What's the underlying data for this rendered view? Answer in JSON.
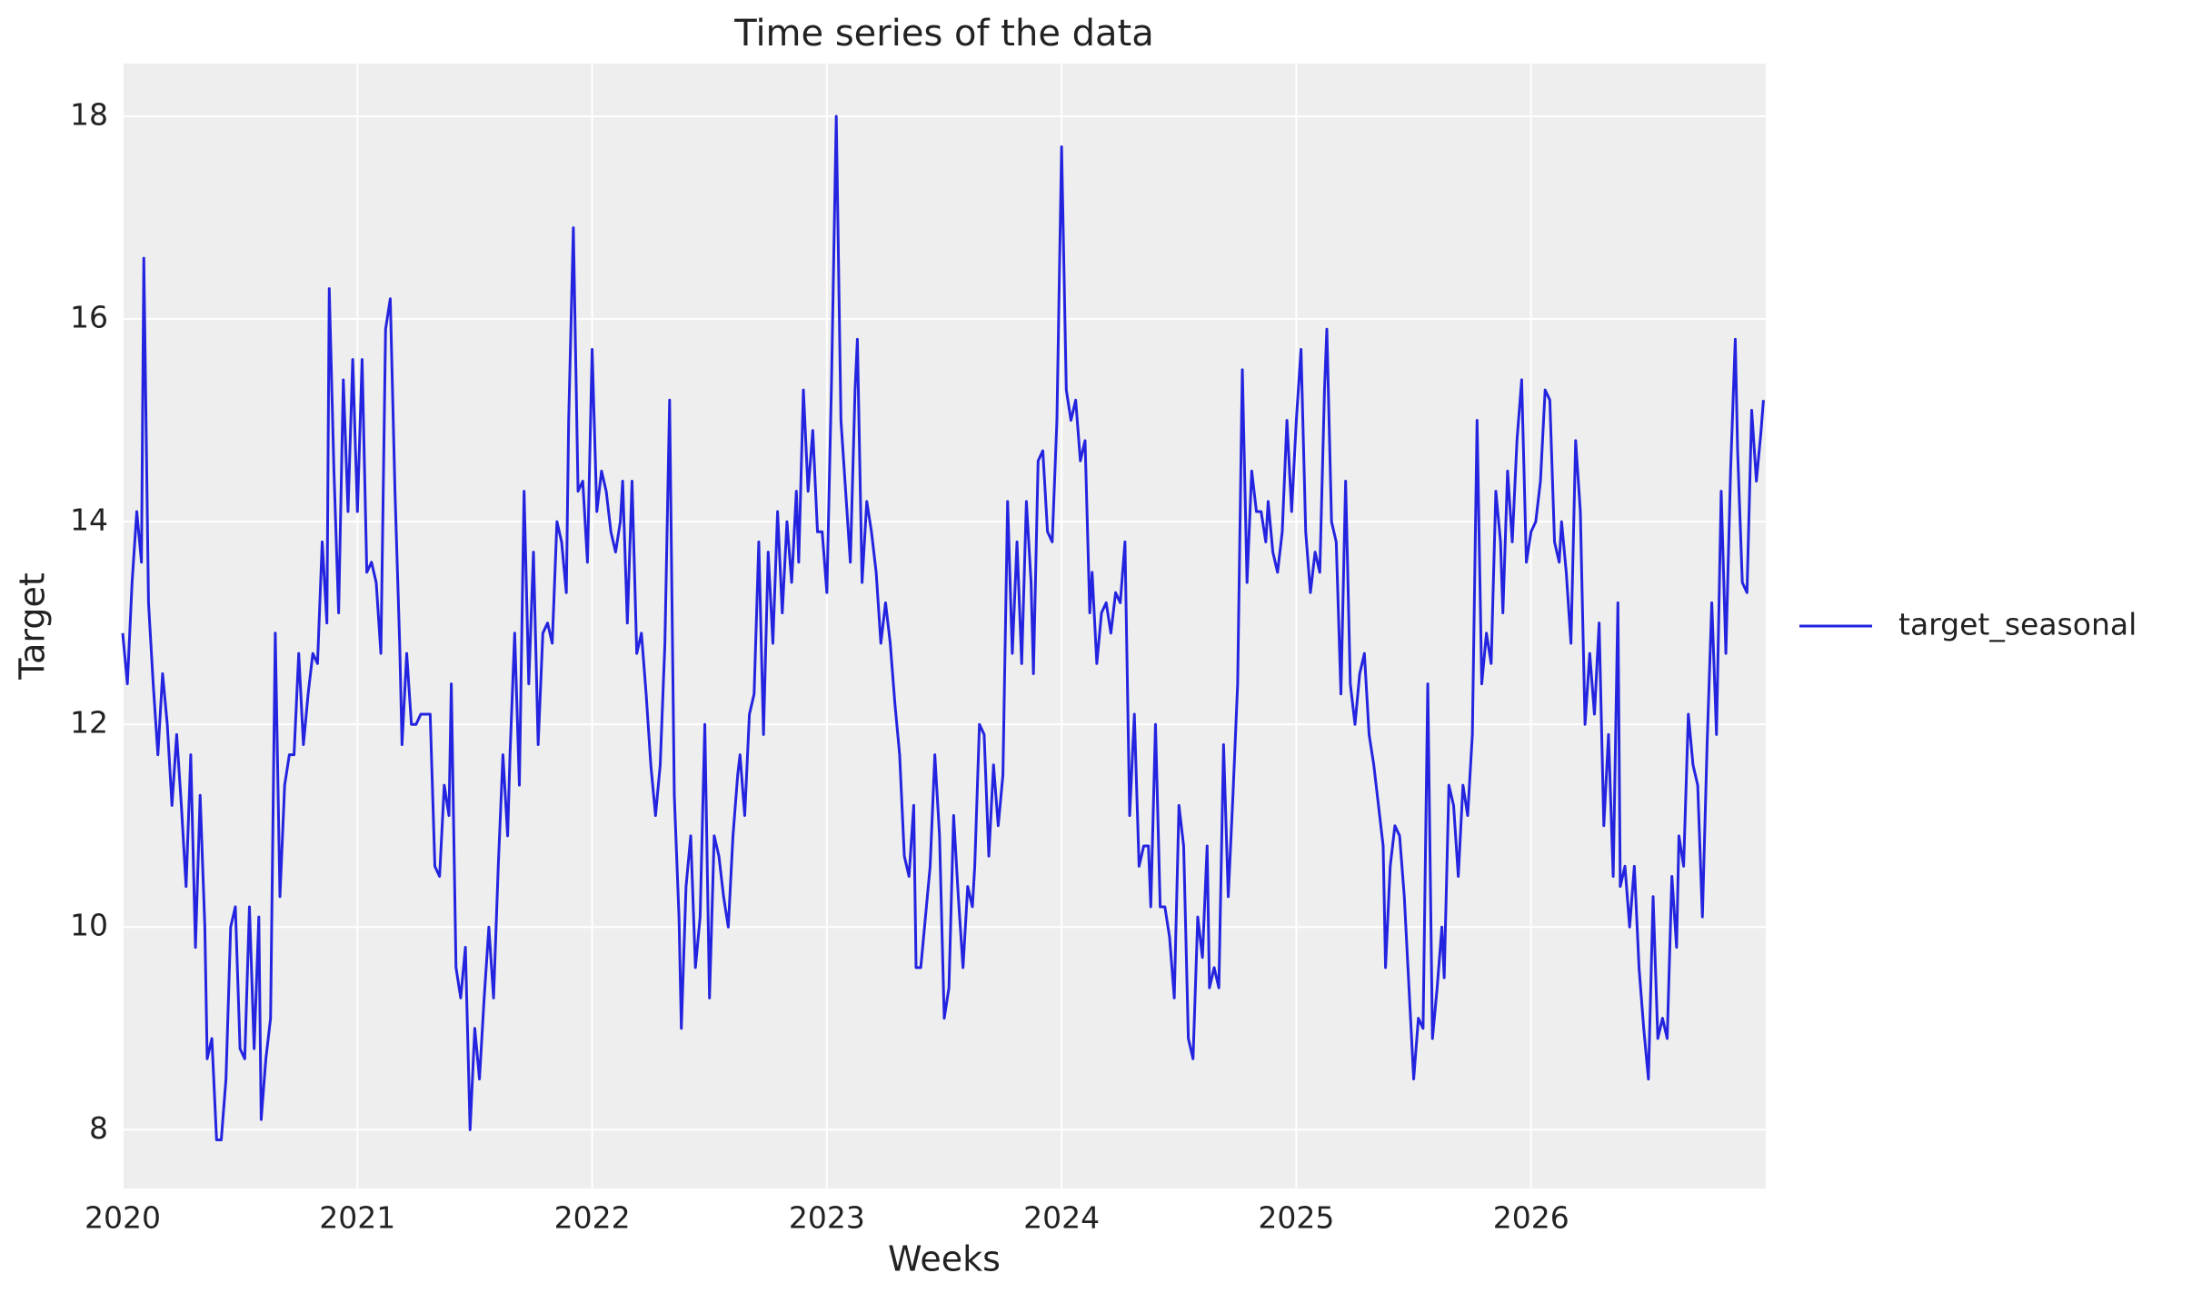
{
  "chart_data": {
    "type": "line",
    "title": "Time series of the data",
    "xlabel": "Weeks",
    "ylabel": "Target",
    "x": [
      2020.0,
      2020.02,
      2020.04,
      2020.06,
      2020.08,
      2020.09,
      2020.11,
      2020.13,
      2020.15,
      2020.17,
      2020.19,
      2020.21,
      2020.23,
      2020.25,
      2020.27,
      2020.29,
      2020.31,
      2020.33,
      2020.35,
      2020.36,
      2020.38,
      2020.4,
      2020.42,
      2020.44,
      2020.46,
      2020.48,
      2020.5,
      2020.52,
      2020.54,
      2020.56,
      2020.58,
      2020.59,
      2020.61,
      2020.63,
      2020.65,
      2020.67,
      2020.69,
      2020.71,
      2020.73,
      2020.75,
      2020.77,
      2020.79,
      2020.81,
      2020.83,
      2020.85,
      2020.87,
      2020.88,
      2020.9,
      2020.92,
      2020.94,
      2020.96,
      2020.98,
      2021.0,
      2021.02,
      2021.04,
      2021.06,
      2021.08,
      2021.1,
      2021.12,
      2021.14,
      2021.16,
      2021.18,
      2021.19,
      2021.21,
      2021.23,
      2021.25,
      2021.27,
      2021.29,
      2021.31,
      2021.33,
      2021.35,
      2021.37,
      2021.39,
      2021.4,
      2021.42,
      2021.44,
      2021.46,
      2021.48,
      2021.5,
      2021.52,
      2021.54,
      2021.56,
      2021.58,
      2021.6,
      2021.62,
      2021.64,
      2021.65,
      2021.67,
      2021.69,
      2021.71,
      2021.73,
      2021.75,
      2021.77,
      2021.79,
      2021.81,
      2021.83,
      2021.85,
      2021.87,
      2021.89,
      2021.9,
      2021.92,
      2021.94,
      2021.96,
      2021.98,
      2022.0,
      2022.02,
      2022.04,
      2022.06,
      2022.08,
      2022.1,
      2022.12,
      2022.13,
      2022.15,
      2022.17,
      2022.19,
      2022.21,
      2022.23,
      2022.25,
      2022.27,
      2022.29,
      2022.31,
      2022.33,
      2022.35,
      2022.37,
      2022.38,
      2022.4,
      2022.42,
      2022.44,
      2022.46,
      2022.48,
      2022.5,
      2022.52,
      2022.54,
      2022.56,
      2022.58,
      2022.6,
      2022.62,
      2022.63,
      2022.65,
      2022.67,
      2022.69,
      2022.71,
      2022.73,
      2022.75,
      2022.77,
      2022.79,
      2022.81,
      2022.83,
      2022.85,
      2022.87,
      2022.88,
      2022.9,
      2022.92,
      2022.94,
      2022.96,
      2022.98,
      2023.0,
      2023.02,
      2023.04,
      2023.06,
      2023.08,
      2023.1,
      2023.12,
      2023.13,
      2023.15,
      2023.17,
      2023.19,
      2023.21,
      2023.23,
      2023.25,
      2023.27,
      2023.29,
      2023.31,
      2023.33,
      2023.35,
      2023.37,
      2023.38,
      2023.4,
      2023.42,
      2023.44,
      2023.46,
      2023.48,
      2023.5,
      2023.52,
      2023.54,
      2023.56,
      2023.58,
      2023.6,
      2023.62,
      2023.63,
      2023.65,
      2023.67,
      2023.69,
      2023.71,
      2023.73,
      2023.75,
      2023.77,
      2023.79,
      2023.81,
      2023.83,
      2023.85,
      2023.87,
      2023.88,
      2023.9,
      2023.92,
      2023.94,
      2023.96,
      2023.98,
      2024.0,
      2024.02,
      2024.04,
      2024.06,
      2024.08,
      2024.1,
      2024.12,
      2024.13,
      2024.15,
      2024.17,
      2024.19,
      2024.21,
      2024.23,
      2024.25,
      2024.27,
      2024.29,
      2024.31,
      2024.33,
      2024.35,
      2024.37,
      2024.38,
      2024.4,
      2024.42,
      2024.44,
      2024.46,
      2024.48,
      2024.5,
      2024.52,
      2024.54,
      2024.56,
      2024.58,
      2024.6,
      2024.62,
      2024.63,
      2024.65,
      2024.67,
      2024.69,
      2024.71,
      2024.73,
      2024.75,
      2024.77,
      2024.79,
      2024.81,
      2024.83,
      2024.85,
      2024.87,
      2024.88,
      2024.9,
      2024.92,
      2024.94,
      2024.96,
      2024.98,
      2025.0,
      2025.02,
      2025.04,
      2025.06,
      2025.08,
      2025.1,
      2025.12,
      2025.13,
      2025.15,
      2025.17,
      2025.19,
      2025.21,
      2025.23,
      2025.25,
      2025.27,
      2025.29,
      2025.31,
      2025.33,
      2025.35,
      2025.37,
      2025.38,
      2025.4,
      2025.42,
      2025.44,
      2025.46,
      2025.48,
      2025.5,
      2025.52,
      2025.54,
      2025.56,
      2025.58,
      2025.6,
      2025.62,
      2025.63,
      2025.65,
      2025.67,
      2025.69,
      2025.71,
      2025.73,
      2025.75,
      2025.77,
      2025.79,
      2025.81,
      2025.83,
      2025.85,
      2025.87,
      2025.88,
      2025.9,
      2025.92,
      2025.94,
      2025.96,
      2025.98,
      2026.0,
      2026.02,
      2026.04,
      2026.06,
      2026.08,
      2026.1,
      2026.12,
      2026.13,
      2026.15,
      2026.17,
      2026.19,
      2026.21,
      2026.23,
      2026.25,
      2026.27,
      2026.29,
      2026.31,
      2026.33,
      2026.35,
      2026.37,
      2026.38,
      2026.4,
      2026.42,
      2026.44,
      2026.46,
      2026.48,
      2026.5,
      2026.52,
      2026.54,
      2026.56,
      2026.58,
      2026.6,
      2026.62,
      2026.63,
      2026.65,
      2026.67,
      2026.69,
      2026.71,
      2026.73,
      2026.75,
      2026.77,
      2026.79,
      2026.81,
      2026.83,
      2026.85,
      2026.87,
      2026.88,
      2026.9,
      2026.92,
      2026.94,
      2026.96,
      2026.98,
      2026.99
    ],
    "series": [
      {
        "name": "target_seasonal",
        "color": "#2424e0",
        "values": [
          12.9,
          12.4,
          13.4,
          14.1,
          13.6,
          16.6,
          13.2,
          12.4,
          11.7,
          12.5,
          12.0,
          11.2,
          11.9,
          11.2,
          10.4,
          11.7,
          9.8,
          11.3,
          10.0,
          8.7,
          8.9,
          7.9,
          7.9,
          8.5,
          10.0,
          10.2,
          8.8,
          8.7,
          10.2,
          8.8,
          10.1,
          8.1,
          8.7,
          9.1,
          12.9,
          10.3,
          11.4,
          11.7,
          11.7,
          12.7,
          11.8,
          12.3,
          12.7,
          12.6,
          13.8,
          13.0,
          16.3,
          14.5,
          13.1,
          15.4,
          14.1,
          15.6,
          14.1,
          15.6,
          13.5,
          13.6,
          13.4,
          12.7,
          15.9,
          16.2,
          14.3,
          12.8,
          11.8,
          12.7,
          12.0,
          12.0,
          12.1,
          12.1,
          12.1,
          10.6,
          10.5,
          11.4,
          11.1,
          12.4,
          9.6,
          9.3,
          9.8,
          8.0,
          9.0,
          8.5,
          9.3,
          10.0,
          9.3,
          10.6,
          11.7,
          10.9,
          11.7,
          12.9,
          11.4,
          14.3,
          12.4,
          13.7,
          11.8,
          12.9,
          13.0,
          12.8,
          14.0,
          13.8,
          13.3,
          15.0,
          16.9,
          14.3,
          14.4,
          13.6,
          15.7,
          14.1,
          14.5,
          14.3,
          13.9,
          13.7,
          14.0,
          14.4,
          13.0,
          14.4,
          12.7,
          12.9,
          12.3,
          11.6,
          11.1,
          11.6,
          12.8,
          15.2,
          11.3,
          10.1,
          9.0,
          10.4,
          10.9,
          9.6,
          10.1,
          12.0,
          9.3,
          10.9,
          10.7,
          10.3,
          10.0,
          10.9,
          11.5,
          11.7,
          11.1,
          12.1,
          12.3,
          13.8,
          11.9,
          13.7,
          12.8,
          14.1,
          13.1,
          14.0,
          13.4,
          14.3,
          13.6,
          15.3,
          14.3,
          14.9,
          13.9,
          13.9,
          13.3,
          15.4,
          18.0,
          15.0,
          14.3,
          13.6,
          15.3,
          15.8,
          13.4,
          14.2,
          13.9,
          13.5,
          12.8,
          13.2,
          12.8,
          12.2,
          11.7,
          10.7,
          10.5,
          11.2,
          9.6,
          9.6,
          10.1,
          10.6,
          11.7,
          10.9,
          9.1,
          9.4,
          11.1,
          10.3,
          9.6,
          10.4,
          10.2,
          10.6,
          12.0,
          11.9,
          10.7,
          11.6,
          11.0,
          11.5,
          14.2,
          12.7,
          13.8,
          12.6,
          14.2,
          13.4,
          12.5,
          14.6,
          14.7,
          13.9,
          13.8,
          15.0,
          17.7,
          15.3,
          15.0,
          15.2,
          14.6,
          14.8,
          13.1,
          13.5,
          12.6,
          13.1,
          13.2,
          12.9,
          13.3,
          13.2,
          13.8,
          11.1,
          12.1,
          10.6,
          10.8,
          10.8,
          10.2,
          12.0,
          10.2,
          10.2,
          9.9,
          9.3,
          11.2,
          10.8,
          8.9,
          8.7,
          10.1,
          9.7,
          10.8,
          9.4,
          9.6,
          9.4,
          11.8,
          10.3,
          11.3,
          12.4,
          15.5,
          13.4,
          14.5,
          14.1,
          14.1,
          13.8,
          14.2,
          13.7,
          13.5,
          13.9,
          15.0,
          14.1,
          15.0,
          15.7,
          13.9,
          13.3,
          13.7,
          13.5,
          15.3,
          15.9,
          14.0,
          13.8,
          12.3,
          14.4,
          12.4,
          12.0,
          12.5,
          12.7,
          11.9,
          11.6,
          11.2,
          10.8,
          9.6,
          10.6,
          11.0,
          10.9,
          10.3,
          9.4,
          8.5,
          9.1,
          9.0,
          12.4,
          8.9,
          9.4,
          10.0,
          9.5,
          11.4,
          11.2,
          10.5,
          11.4,
          11.1,
          11.9,
          15.0,
          12.4,
          12.9,
          12.6,
          14.3,
          13.8,
          13.1,
          14.5,
          13.8,
          14.8,
          15.4,
          13.6,
          13.9,
          14.0,
          14.4,
          15.3,
          15.2,
          13.8,
          13.6,
          14.0,
          13.5,
          12.8,
          14.8,
          14.1,
          12.0,
          12.7,
          12.1,
          13.0,
          11.0,
          11.9,
          10.5,
          13.2,
          10.4,
          10.6,
          10.0,
          10.6,
          9.6,
          9.0,
          8.5,
          10.3,
          8.9,
          9.1,
          8.9,
          10.5,
          9.8,
          10.9,
          10.6,
          12.1,
          11.6,
          11.4,
          10.1,
          11.8,
          13.2,
          11.9,
          14.3,
          12.7,
          14.5,
          15.8,
          14.7,
          13.4,
          13.3,
          15.1,
          14.4,
          14.9,
          15.2
        ]
      }
    ],
    "xlim": [
      2020,
      2027
    ],
    "xticks": [
      2020,
      2021,
      2022,
      2023,
      2024,
      2025,
      2026
    ],
    "ylim": [
      7.42,
      18.52
    ],
    "yticks": [
      8,
      10,
      12,
      14,
      16,
      18
    ],
    "grid": true,
    "legend": "right"
  }
}
